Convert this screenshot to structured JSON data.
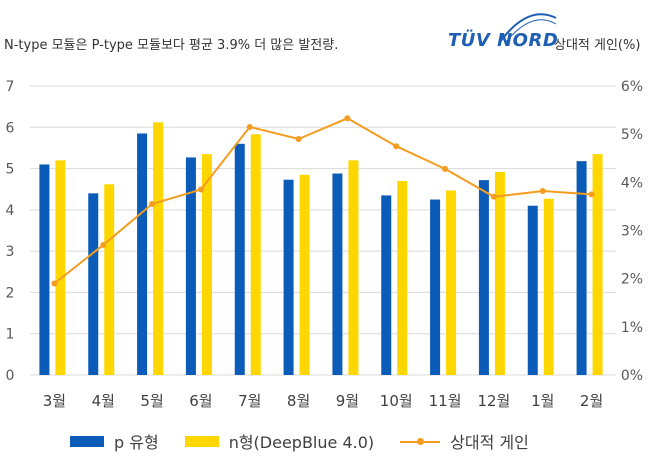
{
  "header": {
    "subtitle": "N-type 모듈은 P-type 모듈보다 평균 3.9% 더 많은 발전량.",
    "brand": "TÜV NORD",
    "y2_title": "상대적 게인(%)"
  },
  "colors": {
    "p": "#0a5cb8",
    "n": "#ffd700",
    "gain": "#f39c1f",
    "grid": "#d9d9d9"
  },
  "chart_data": {
    "type": "bar",
    "categories": [
      "3월",
      "4월",
      "5월",
      "6월",
      "7월",
      "8월",
      "9월",
      "10월",
      "11월",
      "12월",
      "1월",
      "2월"
    ],
    "series": [
      {
        "name": "p 유형",
        "type": "bar",
        "axis": "left",
        "values": [
          5.1,
          4.4,
          5.85,
          5.27,
          5.6,
          4.73,
          4.88,
          4.35,
          4.25,
          4.72,
          4.1,
          5.18
        ]
      },
      {
        "name": "n형(DeepBlue 4.0)",
        "type": "bar",
        "axis": "left",
        "values": [
          5.2,
          4.62,
          6.12,
          5.35,
          5.83,
          4.85,
          5.2,
          4.7,
          4.47,
          4.92,
          4.27,
          5.35
        ]
      },
      {
        "name": "상대적 게인",
        "type": "line",
        "axis": "right",
        "values": [
          1.9,
          2.7,
          3.55,
          3.85,
          5.15,
          4.9,
          5.33,
          4.75,
          4.28,
          3.7,
          3.82,
          3.75
        ]
      }
    ],
    "ylim": [
      0,
      7
    ],
    "yticks": [
      "0",
      "1",
      "2",
      "3",
      "4",
      "5",
      "6",
      "7"
    ],
    "y2lim": [
      0,
      6
    ],
    "y2ticks": [
      "0%",
      "1%",
      "2%",
      "3%",
      "4%",
      "5%",
      "6%"
    ],
    "grid": true,
    "legend": "bottom"
  }
}
